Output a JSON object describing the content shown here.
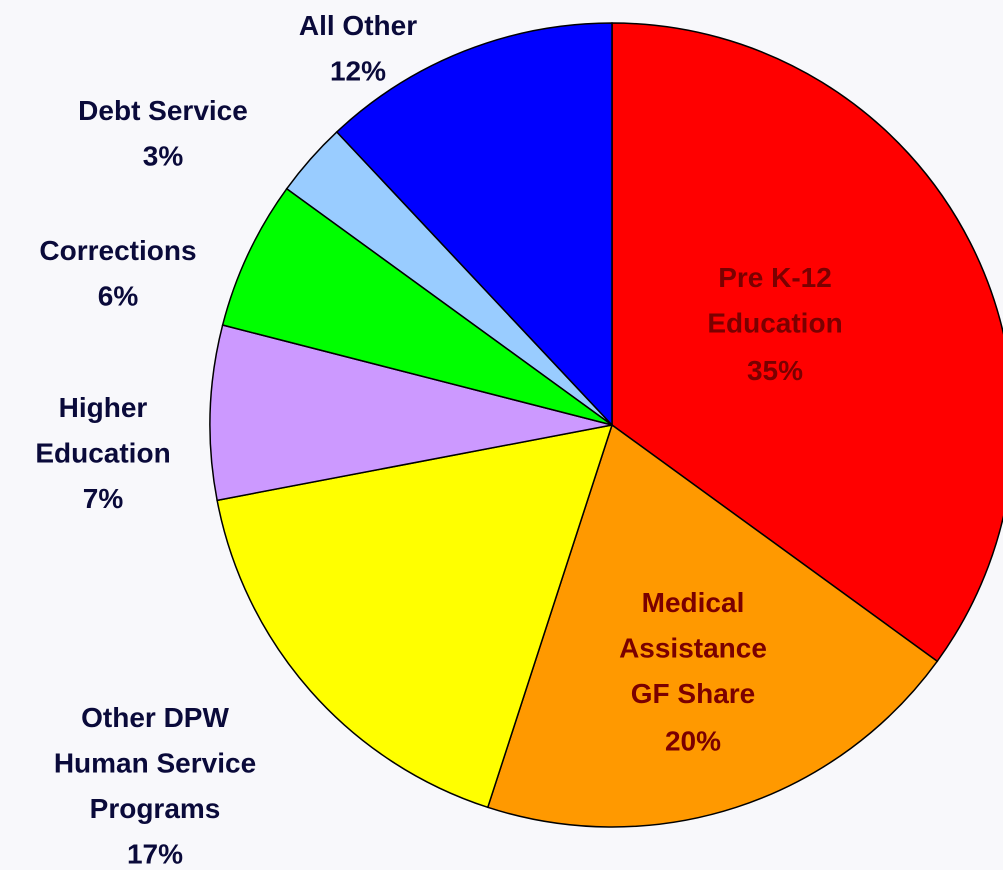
{
  "chart_data": {
    "type": "pie",
    "categories": [
      [
        "Pre K-12",
        "Education"
      ],
      [
        "Medical",
        "Assistance",
        "GF Share"
      ],
      [
        "Other DPW",
        "Human Service",
        "Programs"
      ],
      [
        "Higher",
        "Education"
      ],
      [
        "Corrections"
      ],
      [
        "Debt Service"
      ],
      [
        "All Other"
      ]
    ],
    "values": [
      35,
      20,
      17,
      7,
      6,
      3,
      12
    ],
    "value_labels": [
      "35%",
      "20%",
      "17%",
      "7%",
      "6%",
      "3%",
      "12%"
    ],
    "colors": [
      "#ff0000",
      "#ff9900",
      "#ffff00",
      "#cc99ff",
      "#00ff00",
      "#99ccff",
      "#0000ff"
    ]
  }
}
